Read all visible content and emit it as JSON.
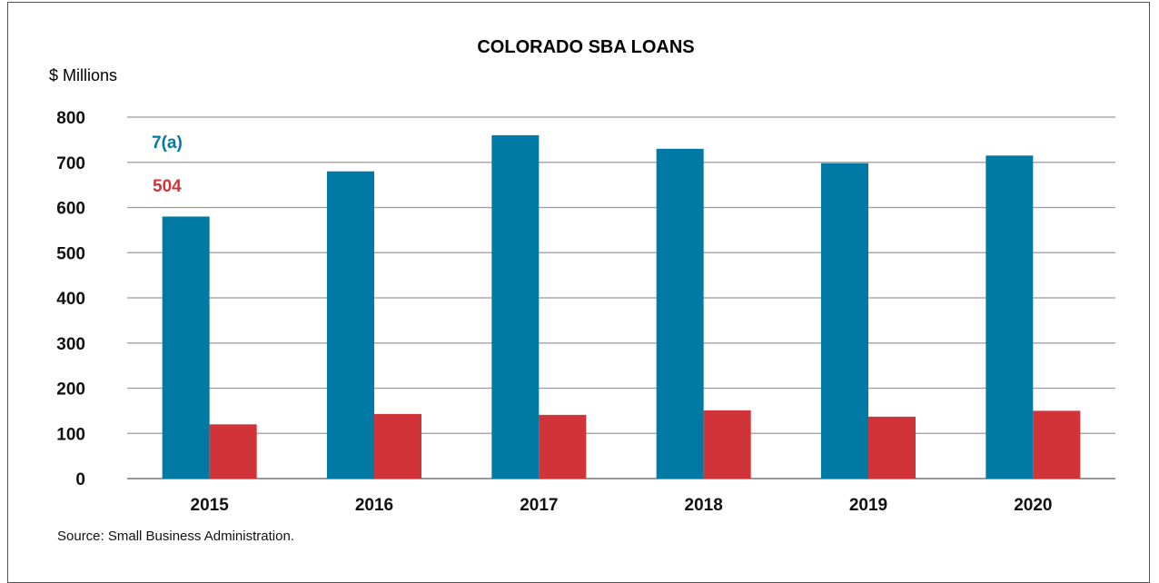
{
  "chart_data": {
    "type": "bar",
    "title": "COLORADO SBA LOANS",
    "ylabel": "$ Millions",
    "xlabel": "",
    "categories": [
      "2015",
      "2016",
      "2017",
      "2018",
      "2019",
      "2020"
    ],
    "series": [
      {
        "name": "7(a)",
        "color": "#0079A5",
        "values": [
          580,
          680,
          760,
          730,
          698,
          715
        ]
      },
      {
        "name": "504",
        "color": "#D03338",
        "values": [
          120,
          143,
          141,
          151,
          137,
          150
        ]
      }
    ],
    "ylim": [
      0,
      800
    ],
    "yticks": [
      0,
      100,
      200,
      300,
      400,
      500,
      600,
      700,
      800
    ],
    "grid": true,
    "legend": "top-left",
    "source": "Source: Small Business Administration."
  }
}
